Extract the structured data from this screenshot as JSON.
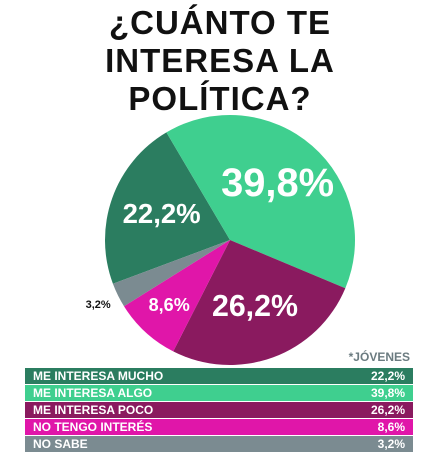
{
  "chart_data": {
    "type": "pie",
    "title": "¿CUÁNTO TE INTERESA LA POLÍTICA?",
    "note": "*JÓVENES",
    "categories": [
      "ME INTERESA MUCHO",
      "ME INTERESA ALGO",
      "ME INTERESA POCO",
      "NO TENGO INTERÉS",
      "NO SABE"
    ],
    "values": [
      22.2,
      39.8,
      26.2,
      8.6,
      3.2
    ],
    "value_labels": [
      "22,2%",
      "39,8%",
      "26,2%",
      "8,6%",
      "3,2%"
    ],
    "colors": [
      "#2b7d60",
      "#3fcf8f",
      "#8a1a5f",
      "#e016a9",
      "#7b8b91"
    ]
  }
}
